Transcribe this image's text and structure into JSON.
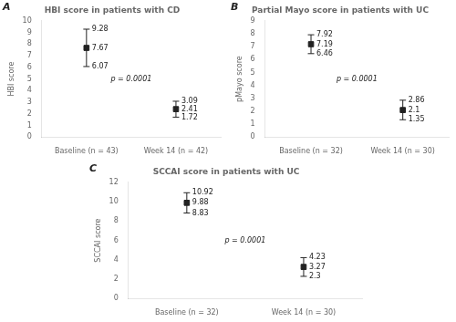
{
  "chart_data": [
    {
      "type": "errorbar",
      "panel_label": "A",
      "title": "HBI score in patients with CD",
      "y_label": "HBI score",
      "categories": [
        "Baseline (n = 43)",
        "Week 14 (n = 42)"
      ],
      "values": [
        7.67,
        2.41
      ],
      "upper": [
        9.28,
        3.09
      ],
      "lower": [
        6.07,
        1.72
      ],
      "annotation": "p = 0.0001",
      "ylim": [
        0,
        10
      ],
      "yticks": [
        0,
        1,
        2,
        3,
        4,
        5,
        6,
        7,
        8,
        9,
        10
      ],
      "grid": false,
      "data_labels": true,
      "marker": "square",
      "color": "#222222"
    },
    {
      "type": "errorbar",
      "panel_label": "B",
      "title": "Partial Mayo score in patients with UC",
      "y_label": "pMayo score",
      "categories": [
        "Baseline (n = 32)",
        "Week 14 (n = 30)"
      ],
      "values": [
        7.19,
        2.1
      ],
      "upper": [
        7.92,
        2.86
      ],
      "lower": [
        6.46,
        1.35
      ],
      "annotation": "p = 0.0001",
      "ylim": [
        0,
        9
      ],
      "yticks": [
        0,
        1,
        2,
        3,
        4,
        5,
        6,
        7,
        8,
        9
      ],
      "grid": false,
      "data_labels": true,
      "marker": "square",
      "color": "#222222"
    },
    {
      "type": "errorbar",
      "panel_label": "C",
      "title": "SCCAI score in patients with UC",
      "y_label": "SCCAI score",
      "categories": [
        "Baseline (n = 32)",
        "Week 14 (n = 30)"
      ],
      "values": [
        9.88,
        3.27
      ],
      "upper": [
        10.92,
        4.23
      ],
      "lower": [
        8.83,
        2.3
      ],
      "annotation": "p = 0.0001",
      "ylim": [
        0,
        12
      ],
      "yticks": [
        0,
        2,
        4,
        6,
        8,
        10,
        12
      ],
      "grid": false,
      "data_labels": true,
      "marker": "square",
      "color": "#222222"
    }
  ]
}
